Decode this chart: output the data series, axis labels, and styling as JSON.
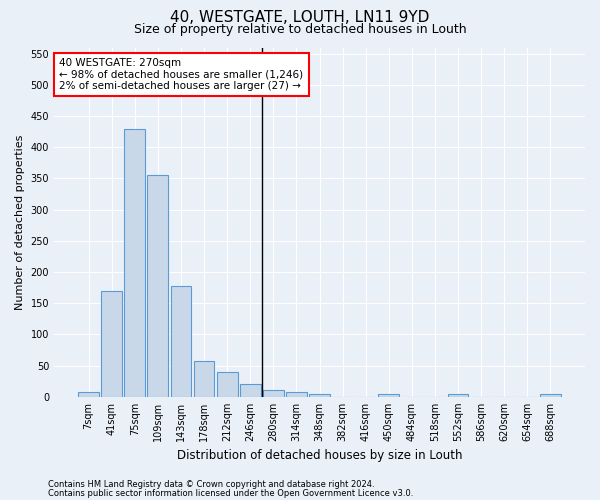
{
  "title": "40, WESTGATE, LOUTH, LN11 9YD",
  "subtitle": "Size of property relative to detached houses in Louth",
  "xlabel": "Distribution of detached houses by size in Louth",
  "ylabel": "Number of detached properties",
  "bar_labels": [
    "7sqm",
    "41sqm",
    "75sqm",
    "109sqm",
    "143sqm",
    "178sqm",
    "212sqm",
    "246sqm",
    "280sqm",
    "314sqm",
    "348sqm",
    "382sqm",
    "416sqm",
    "450sqm",
    "484sqm",
    "518sqm",
    "552sqm",
    "586sqm",
    "620sqm",
    "654sqm",
    "688sqm"
  ],
  "bar_heights": [
    8,
    170,
    430,
    355,
    178,
    57,
    40,
    20,
    11,
    7,
    4,
    0,
    0,
    4,
    0,
    0,
    4,
    0,
    0,
    0,
    4
  ],
  "bar_color": "#c8d8e8",
  "bar_edge_color": "#5b9bd5",
  "vline_x_index": 8,
  "vline_color": "black",
  "annotation_line1": "40 WESTGATE: 270sqm",
  "annotation_line2": "← 98% of detached houses are smaller (1,246)",
  "annotation_line3": "2% of semi-detached houses are larger (27) →",
  "annotation_box_color": "white",
  "annotation_box_edge": "red",
  "ylim": [
    0,
    560
  ],
  "yticks": [
    0,
    50,
    100,
    150,
    200,
    250,
    300,
    350,
    400,
    450,
    500,
    550
  ],
  "footnote1": "Contains HM Land Registry data © Crown copyright and database right 2024.",
  "footnote2": "Contains public sector information licensed under the Open Government Licence v3.0.",
  "background_color": "#eaf0f8",
  "grid_color": "#ffffff",
  "title_fontsize": 11,
  "subtitle_fontsize": 9,
  "tick_fontsize": 7,
  "ylabel_fontsize": 8,
  "xlabel_fontsize": 8.5,
  "footnote_fontsize": 6,
  "annotation_fontsize": 7.5
}
